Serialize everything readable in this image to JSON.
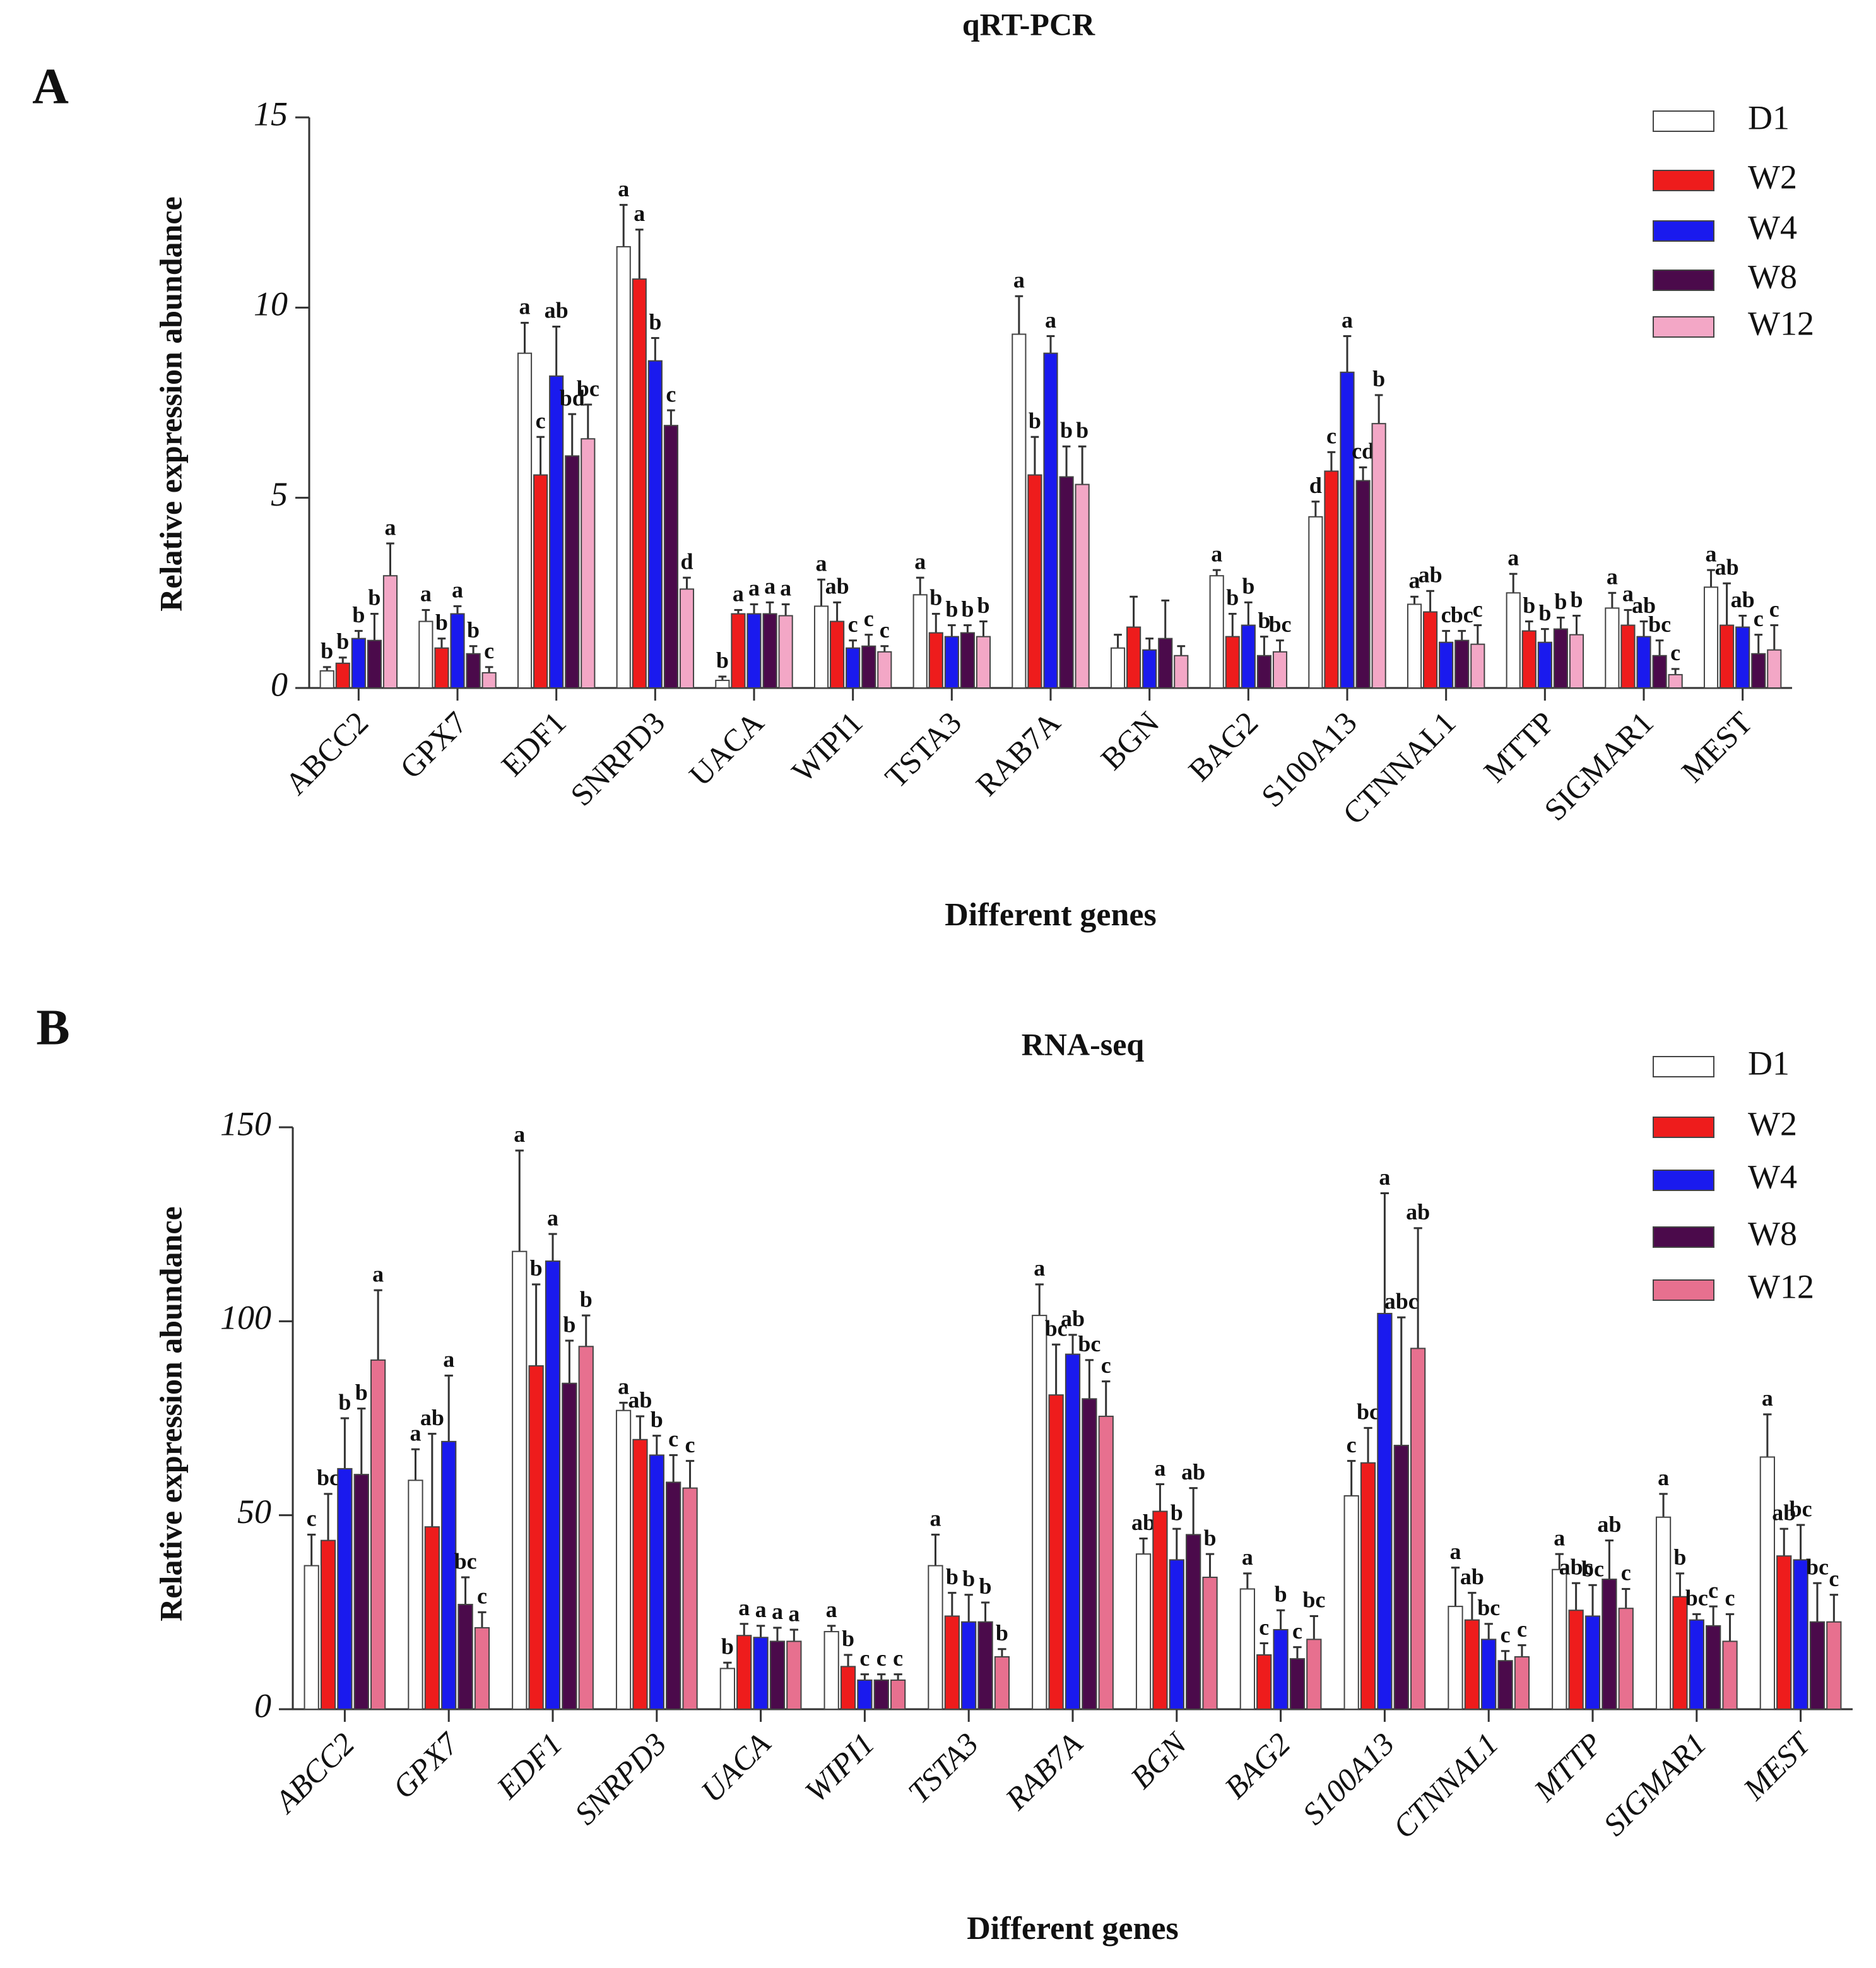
{
  "chart_data": [
    {
      "type": "bar",
      "panel": "A",
      "title": "qRT-PCR",
      "y_label": "Relative expression abundance",
      "x_label": "Different genes",
      "categories": [
        "ABCC2",
        "GPX7",
        "EDF1",
        "SNRPD3",
        "UACA",
        "WIPI1",
        "TSTA3",
        "RAB7A",
        "BGN",
        "BAG2",
        "S100A13",
        "CTNNAL1",
        "MTTP",
        "SIGMAR1",
        "MEST"
      ],
      "ylim": [
        0,
        15
      ],
      "yticks": [
        0,
        5,
        10,
        15
      ],
      "series": [
        {
          "name": "D1",
          "color": "#ffffff",
          "values": [
            0.45,
            1.75,
            8.8,
            11.6,
            0.2,
            2.15,
            2.45,
            9.3,
            1.05,
            2.95,
            4.5,
            2.2,
            2.5,
            2.1,
            2.65
          ],
          "errors": [
            0.1,
            0.3,
            0.8,
            1.1,
            0.1,
            0.7,
            0.45,
            1.0,
            0.35,
            0.15,
            0.4,
            0.2,
            0.5,
            0.4,
            0.45
          ],
          "labels": [
            "b",
            "a",
            "a",
            "a",
            "b",
            "a",
            "a",
            "a",
            null,
            "a",
            "d",
            "a",
            "a",
            "a",
            "a"
          ]
        },
        {
          "name": "W2",
          "color": "#ee1c1c",
          "values": [
            0.65,
            1.05,
            5.6,
            10.75,
            1.95,
            1.75,
            1.45,
            5.6,
            1.6,
            1.35,
            5.7,
            2.0,
            1.5,
            1.65,
            1.65
          ],
          "errors": [
            0.15,
            0.25,
            1.0,
            1.3,
            0.1,
            0.5,
            0.5,
            1.0,
            0.8,
            0.6,
            0.5,
            0.55,
            0.25,
            0.4,
            1.1
          ],
          "labels": [
            "b",
            "b",
            "c",
            "a",
            "a",
            "ab",
            "b",
            "b",
            null,
            "b",
            "c",
            "ab",
            "b",
            "a",
            "ab"
          ]
        },
        {
          "name": "W4",
          "color": "#1a1aee",
          "values": [
            1.3,
            1.95,
            8.2,
            8.6,
            1.95,
            1.05,
            1.35,
            8.8,
            1.0,
            1.65,
            8.3,
            1.2,
            1.2,
            1.35,
            1.6
          ],
          "errors": [
            0.2,
            0.2,
            1.3,
            0.6,
            0.25,
            0.2,
            0.3,
            0.45,
            0.3,
            0.6,
            0.95,
            0.3,
            0.35,
            0.4,
            0.3
          ],
          "labels": [
            "b",
            "a",
            "ab",
            "b",
            "a",
            "c",
            "b",
            "a",
            null,
            "b",
            "a",
            "c",
            "b",
            "ab",
            "ab"
          ]
        },
        {
          "name": "W8",
          "color": "#4b0a4b",
          "values": [
            1.25,
            0.9,
            6.1,
            6.9,
            1.95,
            1.1,
            1.45,
            5.55,
            1.3,
            0.85,
            5.45,
            1.25,
            1.55,
            0.85,
            0.9
          ],
          "errors": [
            0.7,
            0.2,
            1.1,
            0.4,
            0.3,
            0.3,
            0.2,
            0.8,
            1.0,
            0.5,
            0.35,
            0.25,
            0.3,
            0.4,
            0.5
          ],
          "labels": [
            "b",
            "b",
            "bd",
            "c",
            "a",
            "c",
            "b",
            "b",
            null,
            "b",
            "cd",
            "bc",
            "b",
            "bc",
            "c"
          ]
        },
        {
          "name": "W12",
          "color": "#f3a7c6",
          "values": [
            2.95,
            0.4,
            6.55,
            2.6,
            1.9,
            0.95,
            1.35,
            5.35,
            0.85,
            0.95,
            6.95,
            1.15,
            1.4,
            0.35,
            1.0
          ],
          "errors": [
            0.85,
            0.15,
            0.9,
            0.3,
            0.3,
            0.15,
            0.4,
            1.0,
            0.25,
            0.3,
            0.75,
            0.5,
            0.5,
            0.15,
            0.65
          ],
          "labels": [
            "a",
            "c",
            "bc",
            "d",
            "a",
            "c",
            "b",
            "b",
            null,
            "bc",
            "b",
            "c",
            "b",
            "c",
            "c"
          ]
        }
      ]
    },
    {
      "type": "bar",
      "panel": "B",
      "title": "RNA-seq",
      "y_label": "Relative expression abundance",
      "x_label": "Different genes",
      "categories": [
        "ABCC2",
        "GPX7",
        "EDF1",
        "SNRPD3",
        "UACA",
        "WIPI1",
        "TSTA3",
        "RAB7A",
        "BGN",
        "BAG2",
        "S100A13",
        "CTNNAL1",
        "MTTP",
        "SIGMAR1",
        "MEST"
      ],
      "ylim": [
        0,
        150
      ],
      "yticks": [
        0,
        50,
        100,
        150
      ],
      "series": [
        {
          "name": "D1",
          "color": "#ffffff",
          "values": [
            37,
            59,
            118,
            77,
            10.5,
            20,
            37,
            101.5,
            40,
            31,
            55,
            26.5,
            36,
            49.5,
            65
          ],
          "errors": [
            8,
            8,
            26,
            2,
            1.5,
            1.5,
            8,
            8,
            4,
            4,
            9,
            10,
            4,
            6,
            11
          ],
          "labels": [
            "c",
            "a",
            "a",
            "a",
            "b",
            "a",
            "a",
            "a",
            "ab",
            "a",
            "c",
            "a",
            "a",
            "a",
            "a"
          ]
        },
        {
          "name": "W2",
          "color": "#ee1c1c",
          "values": [
            43.5,
            47,
            88.5,
            69.5,
            19,
            11,
            24,
            81,
            51,
            14,
            63.5,
            23,
            25.5,
            29,
            39.5
          ],
          "errors": [
            12,
            24,
            21,
            6,
            3,
            3,
            6,
            13,
            7,
            3,
            9,
            7,
            7,
            6,
            7
          ],
          "labels": [
            "bc",
            "ab",
            "b",
            "ab",
            "a",
            "b",
            "b",
            "bc",
            "a",
            "c",
            "bc",
            "ab",
            "abc",
            "b",
            "ab"
          ]
        },
        {
          "name": "W4",
          "color": "#1a1aee",
          "values": [
            62,
            69,
            115.5,
            65.5,
            18.5,
            7.5,
            22.5,
            91.5,
            38.5,
            20.5,
            102,
            18,
            24,
            23,
            38.5
          ],
          "errors": [
            13,
            17,
            7,
            5,
            3,
            1.5,
            7,
            5,
            8,
            5,
            31,
            4,
            8,
            1.5,
            9
          ],
          "labels": [
            "b",
            "a",
            "a",
            "b",
            "a",
            "c",
            "b",
            "ab",
            "b",
            "b",
            "a",
            "bc",
            "bc",
            "bc",
            "bc"
          ]
        },
        {
          "name": "W8",
          "color": "#4b0a4b",
          "values": [
            60.5,
            27,
            84,
            58.5,
            17.5,
            7.5,
            22.5,
            80,
            45,
            13,
            68,
            12.5,
            33.5,
            21.5,
            22.5
          ],
          "errors": [
            17,
            7,
            11,
            7,
            3.5,
            1.5,
            5,
            10,
            12,
            3,
            33,
            2.5,
            10,
            5,
            10
          ],
          "labels": [
            "b",
            "bc",
            "b",
            "c",
            "a",
            "c",
            "b",
            "bc",
            "ab",
            "c",
            "abc",
            "c",
            "ab",
            "c",
            "bc"
          ]
        },
        {
          "name": "W12",
          "color": "#e7708f",
          "values": [
            90,
            21,
            93.5,
            57,
            17.5,
            7.5,
            13.5,
            75.5,
            34,
            18,
            93,
            13.5,
            26,
            17.5,
            22.5
          ],
          "errors": [
            18,
            4,
            8,
            7,
            3,
            1.5,
            2,
            9,
            6,
            6,
            31,
            3,
            5,
            7,
            7
          ],
          "labels": [
            "a",
            "c",
            "b",
            "c",
            "a",
            "c",
            "b",
            "c",
            "b",
            "bc",
            "ab",
            "c",
            "c",
            "c",
            "c"
          ]
        }
      ]
    }
  ]
}
